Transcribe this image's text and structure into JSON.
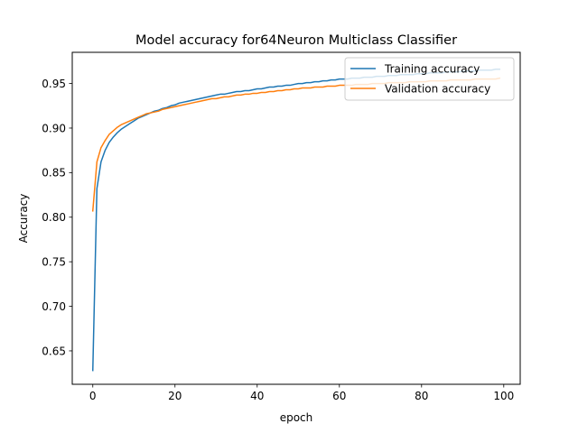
{
  "chart_data": {
    "type": "line",
    "title": "Model accuracy for64Neuron Multiclass Classifier",
    "xlabel": "epoch",
    "ylabel": "Accuracy",
    "xlim": [
      -5,
      104
    ],
    "ylim": [
      0.6125,
      0.985
    ],
    "xticks": [
      0,
      20,
      40,
      60,
      80,
      100
    ],
    "xtick_labels": [
      "0",
      "20",
      "40",
      "60",
      "80",
      "100"
    ],
    "yticks": [
      0.65,
      0.7,
      0.75,
      0.8,
      0.85,
      0.9,
      0.95
    ],
    "ytick_labels": [
      "0.65",
      "0.70",
      "0.75",
      "0.80",
      "0.85",
      "0.90",
      "0.95"
    ],
    "grid": false,
    "legend_position": "upper-right",
    "x": [
      0,
      1,
      2,
      3,
      4,
      5,
      6,
      7,
      8,
      9,
      10,
      11,
      12,
      13,
      14,
      15,
      16,
      17,
      18,
      19,
      20,
      21,
      22,
      23,
      24,
      25,
      26,
      27,
      28,
      29,
      30,
      31,
      32,
      33,
      34,
      35,
      36,
      37,
      38,
      39,
      40,
      41,
      42,
      43,
      44,
      45,
      46,
      47,
      48,
      49,
      50,
      51,
      52,
      53,
      54,
      55,
      56,
      57,
      58,
      59,
      60,
      61,
      62,
      63,
      64,
      65,
      66,
      67,
      68,
      69,
      70,
      71,
      72,
      73,
      74,
      75,
      76,
      77,
      78,
      79,
      80,
      81,
      82,
      83,
      84,
      85,
      86,
      87,
      88,
      89,
      90,
      91,
      92,
      93,
      94,
      95,
      96,
      97,
      98,
      99
    ],
    "series": [
      {
        "name": "Training accuracy",
        "color": "#1f77b4",
        "values": [
          0.628,
          0.832,
          0.862,
          0.875,
          0.884,
          0.89,
          0.895,
          0.899,
          0.902,
          0.905,
          0.908,
          0.911,
          0.913,
          0.915,
          0.917,
          0.919,
          0.92,
          0.922,
          0.923,
          0.925,
          0.926,
          0.928,
          0.929,
          0.93,
          0.931,
          0.932,
          0.933,
          0.934,
          0.935,
          0.936,
          0.937,
          0.938,
          0.938,
          0.939,
          0.94,
          0.941,
          0.941,
          0.942,
          0.942,
          0.943,
          0.944,
          0.944,
          0.945,
          0.946,
          0.946,
          0.947,
          0.947,
          0.948,
          0.948,
          0.949,
          0.95,
          0.95,
          0.951,
          0.951,
          0.952,
          0.952,
          0.953,
          0.953,
          0.954,
          0.954,
          0.955,
          0.955,
          0.955,
          0.956,
          0.956,
          0.956,
          0.957,
          0.957,
          0.957,
          0.958,
          0.958,
          0.958,
          0.959,
          0.959,
          0.959,
          0.96,
          0.96,
          0.96,
          0.96,
          0.961,
          0.961,
          0.961,
          0.962,
          0.962,
          0.962,
          0.962,
          0.963,
          0.963,
          0.963,
          0.963,
          0.964,
          0.964,
          0.964,
          0.964,
          0.965,
          0.965,
          0.965,
          0.965,
          0.966,
          0.966
        ]
      },
      {
        "name": "Validation accuracy",
        "color": "#ff7f0e",
        "values": [
          0.807,
          0.862,
          0.878,
          0.886,
          0.893,
          0.897,
          0.901,
          0.904,
          0.906,
          0.908,
          0.91,
          0.912,
          0.914,
          0.916,
          0.917,
          0.918,
          0.919,
          0.921,
          0.922,
          0.923,
          0.924,
          0.925,
          0.926,
          0.927,
          0.928,
          0.929,
          0.93,
          0.931,
          0.932,
          0.933,
          0.933,
          0.934,
          0.935,
          0.935,
          0.936,
          0.937,
          0.937,
          0.938,
          0.938,
          0.939,
          0.939,
          0.94,
          0.94,
          0.941,
          0.941,
          0.942,
          0.942,
          0.943,
          0.943,
          0.944,
          0.944,
          0.945,
          0.945,
          0.945,
          0.946,
          0.946,
          0.946,
          0.947,
          0.947,
          0.947,
          0.948,
          0.948,
          0.948,
          0.948,
          0.949,
          0.949,
          0.949,
          0.949,
          0.95,
          0.95,
          0.95,
          0.95,
          0.951,
          0.951,
          0.951,
          0.951,
          0.951,
          0.952,
          0.952,
          0.952,
          0.952,
          0.952,
          0.953,
          0.953,
          0.953,
          0.953,
          0.953,
          0.954,
          0.954,
          0.954,
          0.954,
          0.954,
          0.954,
          0.955,
          0.955,
          0.955,
          0.955,
          0.955,
          0.955,
          0.956
        ]
      }
    ]
  }
}
